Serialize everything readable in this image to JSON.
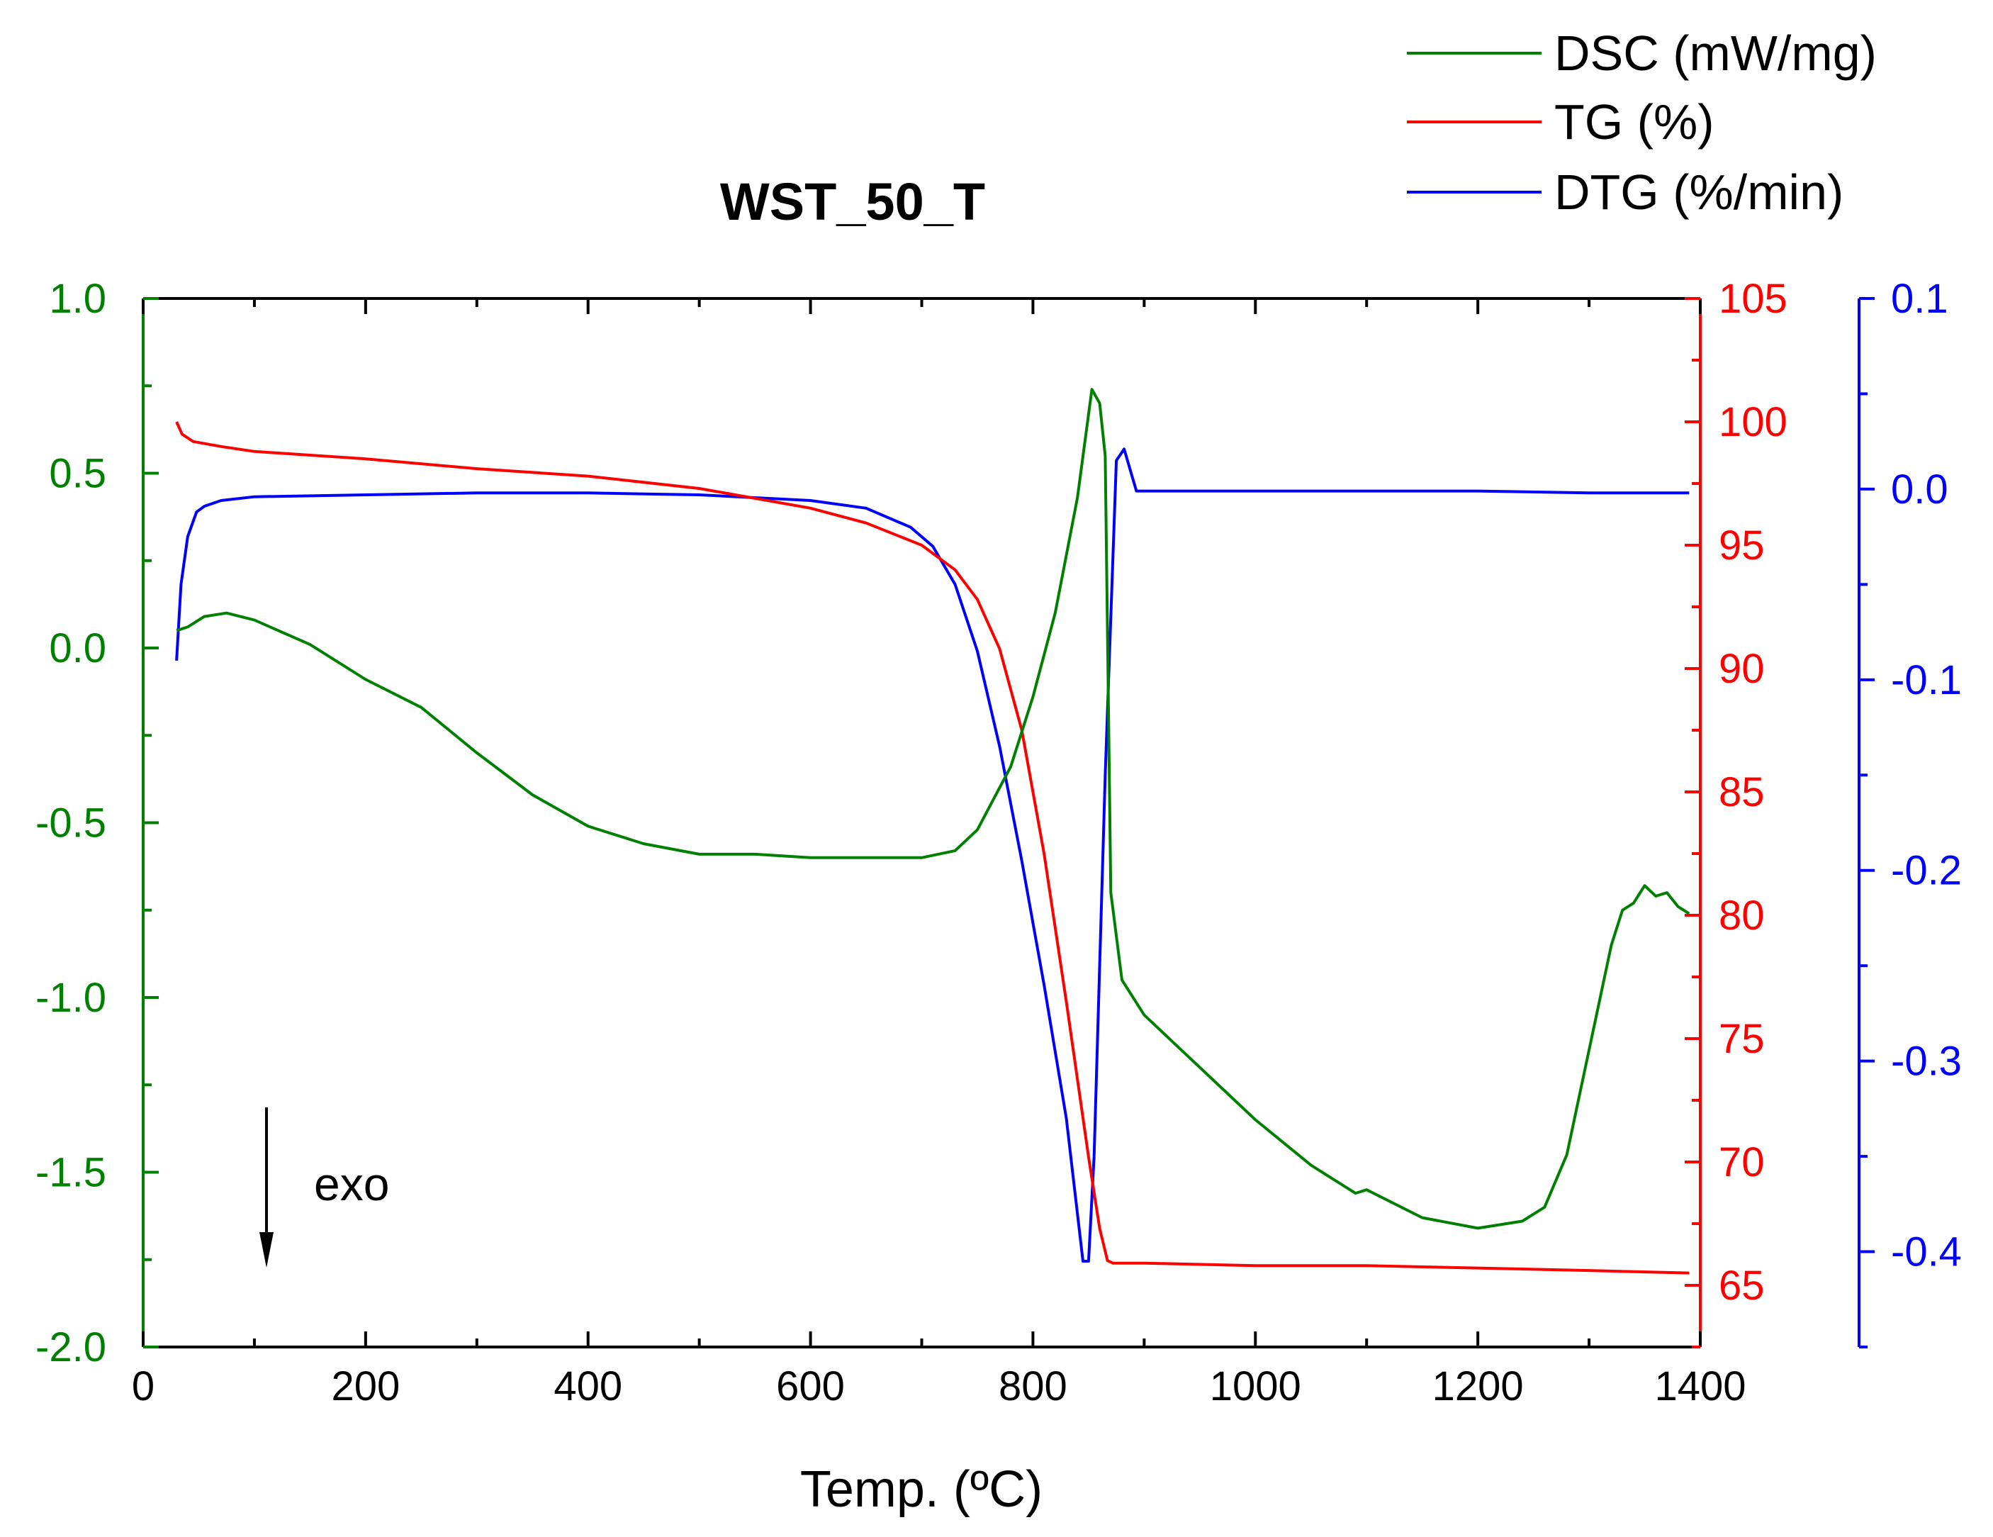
{
  "chart_data": {
    "type": "line",
    "title": "WST_50_T",
    "xlabel": "Temp. (ºC)",
    "xlim": [
      0,
      1400
    ],
    "x_ticks": [
      "0",
      "200",
      "400",
      "600",
      "800",
      "1000",
      "1200",
      "1400"
    ],
    "annotation": "exo",
    "axes": {
      "left": {
        "series": "DSC (mW/mg)",
        "color": "#008000",
        "ylim": [
          -2.0,
          1.0
        ],
        "ticks": [
          "-2.0",
          "-1.5",
          "-1.0",
          "-0.5",
          "0.0",
          "0.5",
          "1.0"
        ]
      },
      "right1": {
        "series": "TG (%)",
        "color": "#ff0000",
        "ylim": [
          62.5,
          105
        ],
        "ticks": [
          "65",
          "70",
          "75",
          "80",
          "85",
          "90",
          "95",
          "100",
          "105"
        ]
      },
      "right2": {
        "series": "DTG (%/min)",
        "color": "#0000ff",
        "ylim": [
          -0.45,
          0.1
        ],
        "ticks": [
          "-0.4",
          "-0.3",
          "-0.2",
          "-0.1",
          "0.0",
          "0.1"
        ]
      }
    },
    "series": [
      {
        "name": "DSC (mW/mg)",
        "color": "#008000",
        "axis": "left",
        "x": [
          30,
          40,
          55,
          75,
          100,
          150,
          200,
          250,
          300,
          350,
          400,
          450,
          500,
          550,
          600,
          650,
          700,
          730,
          750,
          780,
          800,
          820,
          840,
          853,
          860,
          865,
          870,
          880,
          900,
          950,
          1000,
          1050,
          1090,
          1100,
          1150,
          1200,
          1240,
          1260,
          1280,
          1300,
          1320,
          1330,
          1340,
          1350,
          1360,
          1370,
          1380,
          1390
        ],
        "values": [
          0.05,
          0.06,
          0.09,
          0.1,
          0.08,
          0.01,
          -0.09,
          -0.17,
          -0.3,
          -0.42,
          -0.51,
          -0.56,
          -0.59,
          -0.59,
          -0.6,
          -0.6,
          -0.6,
          -0.58,
          -0.52,
          -0.34,
          -0.14,
          0.1,
          0.43,
          0.74,
          0.7,
          0.55,
          -0.7,
          -0.95,
          -1.05,
          -1.2,
          -1.35,
          -1.48,
          -1.56,
          -1.55,
          -1.63,
          -1.66,
          -1.64,
          -1.6,
          -1.45,
          -1.15,
          -0.85,
          -0.75,
          -0.73,
          -0.68,
          -0.71,
          -0.7,
          -0.74,
          -0.76
        ]
      },
      {
        "name": "TG (%)",
        "color": "#ff0000",
        "axis": "right1",
        "x": [
          30,
          35,
          45,
          70,
          100,
          200,
          300,
          400,
          500,
          600,
          650,
          700,
          730,
          750,
          770,
          790,
          810,
          830,
          850,
          860,
          867,
          872,
          900,
          1000,
          1100,
          1200,
          1300,
          1390
        ],
        "values": [
          100,
          99.5,
          99.2,
          99.0,
          98.8,
          98.5,
          98.1,
          97.8,
          97.3,
          96.5,
          95.9,
          95.0,
          94.0,
          92.8,
          90.8,
          87.5,
          82.5,
          76.5,
          70.2,
          67.3,
          66.0,
          65.9,
          65.9,
          65.8,
          65.8,
          65.7,
          65.6,
          65.5
        ]
      },
      {
        "name": "DTG (%/min)",
        "color": "#0000ff",
        "axis": "right2",
        "x": [
          30,
          34,
          40,
          48,
          55,
          70,
          100,
          200,
          300,
          400,
          500,
          600,
          650,
          690,
          710,
          730,
          750,
          770,
          790,
          810,
          830,
          845,
          850,
          855,
          865,
          875,
          882,
          888,
          893,
          900,
          1000,
          1100,
          1200,
          1300,
          1390
        ],
        "values": [
          -0.09,
          -0.05,
          -0.025,
          -0.012,
          -0.009,
          -0.006,
          -0.004,
          -0.003,
          -0.002,
          -0.002,
          -0.003,
          -0.006,
          -0.01,
          -0.02,
          -0.03,
          -0.05,
          -0.085,
          -0.135,
          -0.195,
          -0.26,
          -0.33,
          -0.405,
          -0.405,
          -0.35,
          -0.15,
          0.015,
          0.021,
          0.009,
          -0.001,
          -0.001,
          -0.001,
          -0.001,
          -0.001,
          -0.002,
          -0.002
        ]
      }
    ],
    "legend": {
      "placement": "top-right"
    }
  }
}
